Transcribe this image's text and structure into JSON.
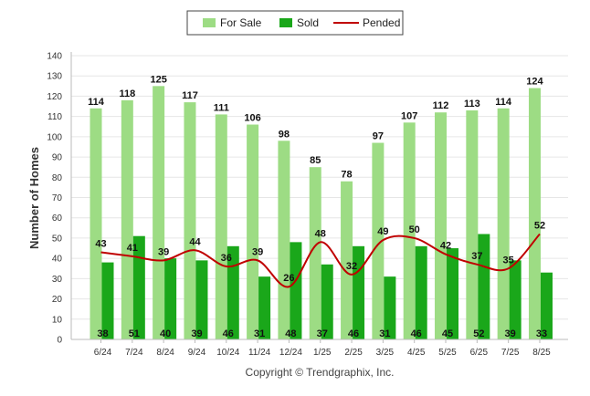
{
  "chart_data": {
    "type": "bar",
    "categories": [
      "6/24",
      "7/24",
      "8/24",
      "9/24",
      "10/24",
      "11/24",
      "12/24",
      "1/25",
      "2/25",
      "3/25",
      "4/25",
      "5/25",
      "6/25",
      "7/25",
      "8/25"
    ],
    "series": [
      {
        "name": "For Sale",
        "kind": "bar",
        "color": "#9ddc84",
        "values": [
          114,
          118,
          125,
          117,
          111,
          106,
          98,
          85,
          78,
          97,
          107,
          112,
          113,
          114,
          124
        ]
      },
      {
        "name": "Sold",
        "kind": "bar",
        "color": "#1aa71a",
        "values": [
          38,
          51,
          40,
          39,
          46,
          31,
          48,
          37,
          46,
          31,
          46,
          45,
          52,
          39,
          33
        ]
      },
      {
        "name": "Pended",
        "kind": "line",
        "color": "#c00000",
        "values": [
          43,
          41,
          39,
          44,
          36,
          39,
          26,
          48,
          32,
          49,
          50,
          42,
          37,
          35,
          52
        ]
      }
    ],
    "ylabel": "Number of Homes",
    "ylim": [
      0,
      140
    ],
    "yticks": [
      0,
      10,
      20,
      30,
      40,
      50,
      60,
      70,
      80,
      90,
      100,
      110,
      120,
      130,
      140
    ],
    "grid": true,
    "legend_position": "top-center"
  },
  "copyright": "Copyright © Trendgraphix, Inc."
}
